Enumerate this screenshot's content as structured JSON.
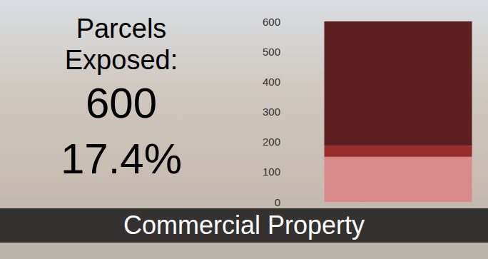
{
  "chart_data": {
    "type": "bar",
    "title": "Commercial Property",
    "annotations": [
      "Parcels Exposed:",
      "600",
      "17.4%"
    ],
    "categories": [
      null
    ],
    "series": [
      {
        "color": "#d98b8b",
        "values": [
          150
        ]
      },
      {
        "color": "#9b2c2c",
        "values": [
          37
        ]
      },
      {
        "color": "#5e1f20",
        "values": [
          413
        ]
      }
    ],
    "stacked": true,
    "grid": false,
    "ylim": [
      0,
      600
    ],
    "yticks": [
      0,
      100,
      200,
      300,
      400,
      500,
      600
    ]
  }
}
